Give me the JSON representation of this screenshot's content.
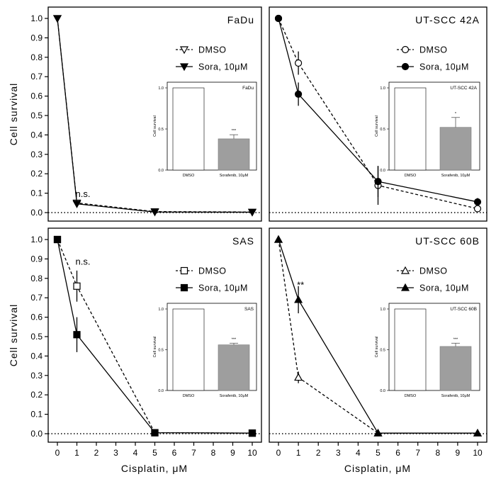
{
  "figure": {
    "ylabel": "Cell survival",
    "xlabel": "Cisplatin, μM"
  },
  "chart_data": [
    {
      "type": "line",
      "title": "FaDu",
      "xlabel": "",
      "ylabel": "Cell survival",
      "x_ticks": [],
      "y_ticks": [
        "0.0",
        "0.1",
        "0.2",
        "0.3",
        "0.4",
        "0.5",
        "0.6",
        "0.7",
        "0.8",
        "0.9",
        "1.0"
      ],
      "xlim": [
        -0.5,
        10.5
      ],
      "ylim": [
        -0.1,
        1.05
      ],
      "reference_line_y": 0,
      "series": [
        {
          "name": "DMSO",
          "style": "dashed",
          "marker": "triangle-down-open",
          "x": [
            0,
            1,
            5,
            10
          ],
          "y": [
            1.0,
            0.05,
            0.005,
            0.003
          ],
          "err": [
            0,
            0.01,
            0,
            0
          ]
        },
        {
          "name": "Sora, 10μM",
          "style": "solid",
          "marker": "triangle-down-filled",
          "x": [
            0,
            1,
            5,
            10
          ],
          "y": [
            1.0,
            0.045,
            0.003,
            0.002
          ],
          "err": [
            0,
            0.01,
            0,
            0
          ]
        }
      ],
      "annotations": [
        {
          "text": "n.s.",
          "x": 1,
          "y": 0.08
        }
      ],
      "inset": {
        "type": "bar",
        "title": "FaDu",
        "ylabel": "Cell survival",
        "categories": [
          "DMSO",
          "Sorafenib, 10μM"
        ],
        "values": [
          1.0,
          0.38
        ],
        "errors": [
          0,
          0.05
        ],
        "significance": [
          "",
          "***"
        ],
        "y_ticks": [
          "0.0",
          "0.5",
          "1.0"
        ],
        "ylim": [
          0,
          1.05
        ]
      }
    },
    {
      "type": "line",
      "title": "UT-SCC 42A",
      "xlabel": "",
      "ylabel": "",
      "x_ticks": [],
      "y_ticks": [],
      "xlim": [
        -0.5,
        10.5
      ],
      "ylim": [
        -0.1,
        1.05
      ],
      "reference_line_y": 0,
      "series": [
        {
          "name": "DMSO",
          "style": "dashed",
          "marker": "circle-open",
          "x": [
            0,
            1,
            5,
            10
          ],
          "y": [
            1.0,
            0.77,
            0.14,
            0.02
          ],
          "err": [
            0,
            0.06,
            0.1,
            0.01
          ]
        },
        {
          "name": "Sora, 10μM",
          "style": "solid",
          "marker": "circle-filled",
          "x": [
            0,
            1,
            5,
            10
          ],
          "y": [
            1.0,
            0.61,
            0.16,
            0.055
          ],
          "err": [
            0,
            0.06,
            0.08,
            0.02
          ]
        }
      ],
      "annotations": [],
      "inset": {
        "type": "bar",
        "title": "UT-SCC 42A",
        "ylabel": "Cell survival",
        "categories": [
          "DMSO",
          "Sorafenib, 10μM"
        ],
        "values": [
          1.0,
          0.52
        ],
        "errors": [
          0,
          0.12
        ],
        "significance": [
          "",
          "*"
        ],
        "y_ticks": [
          "0.0",
          "0.5",
          "1.0"
        ],
        "ylim": [
          0,
          1.05
        ]
      }
    },
    {
      "type": "line",
      "title": "SAS",
      "xlabel": "Cisplatin, μM",
      "ylabel": "Cell survival",
      "x_ticks": [
        "0",
        "1",
        "2",
        "3",
        "4",
        "5",
        "6",
        "7",
        "8",
        "9",
        "10"
      ],
      "y_ticks": [
        "0.0",
        "0.1",
        "0.2",
        "0.3",
        "0.4",
        "0.5",
        "0.6",
        "0.7",
        "0.8",
        "0.9",
        "1.0"
      ],
      "xlim": [
        -0.5,
        10.5
      ],
      "ylim": [
        -0.1,
        1.05
      ],
      "reference_line_y": 0,
      "series": [
        {
          "name": "DMSO",
          "style": "dashed",
          "marker": "square-open",
          "x": [
            0,
            1,
            5,
            10
          ],
          "y": [
            1.0,
            0.76,
            0.005,
            0.003
          ],
          "err": [
            0,
            0.08,
            0,
            0
          ]
        },
        {
          "name": "Sora, 10μM",
          "style": "solid",
          "marker": "square-filled",
          "x": [
            0,
            1,
            5,
            10
          ],
          "y": [
            1.0,
            0.51,
            0.005,
            0.003
          ],
          "err": [
            0,
            0.09,
            0,
            0
          ]
        }
      ],
      "annotations": [
        {
          "text": "n.s.",
          "x": 1,
          "y": 0.87
        }
      ],
      "inset": {
        "type": "bar",
        "title": "SAS",
        "ylabel": "Cell survival",
        "categories": [
          "DMSO",
          "Sorafenib, 10μM"
        ],
        "values": [
          1.0,
          0.56
        ],
        "errors": [
          0,
          0.02
        ],
        "significance": [
          "",
          "***"
        ],
        "y_ticks": [
          "0.0",
          "0.5",
          "1.0"
        ],
        "ylim": [
          0,
          1.05
        ]
      }
    },
    {
      "type": "line",
      "title": "UT-SCC 60B",
      "xlabel": "Cisplatin, μM",
      "ylabel": "",
      "x_ticks": [
        "0",
        "1",
        "2",
        "3",
        "4",
        "5",
        "6",
        "7",
        "8",
        "9",
        "10"
      ],
      "y_ticks": [],
      "xlim": [
        -0.5,
        10.5
      ],
      "ylim": [
        -0.1,
        1.05
      ],
      "reference_line_y": 0,
      "series": [
        {
          "name": "DMSO",
          "style": "dashed",
          "marker": "triangle-up-open",
          "x": [
            0,
            1,
            5,
            10
          ],
          "y": [
            1.0,
            0.29,
            0.003,
            0.003
          ],
          "err": [
            0,
            0.03,
            0,
            0
          ]
        },
        {
          "name": "Sora, 10μM",
          "style": "solid",
          "marker": "triangle-up-filled",
          "x": [
            0,
            1,
            5,
            10
          ],
          "y": [
            1.0,
            0.69,
            0.003,
            0.003
          ],
          "err": [
            0,
            0.07,
            0,
            0
          ]
        }
      ],
      "annotations": [
        {
          "text": "**",
          "x": 1,
          "y": 0.75
        }
      ],
      "inset": {
        "type": "bar",
        "title": "UT-SCC 60B",
        "ylabel": "Cell survival",
        "categories": [
          "DMSO",
          "Sorafenib, 10μM"
        ],
        "values": [
          1.0,
          0.54
        ],
        "errors": [
          0,
          0.04
        ],
        "significance": [
          "",
          "***"
        ],
        "y_ticks": [
          "0.0",
          "0.5",
          "1.0"
        ],
        "ylim": [
          0,
          1.05
        ]
      }
    }
  ]
}
